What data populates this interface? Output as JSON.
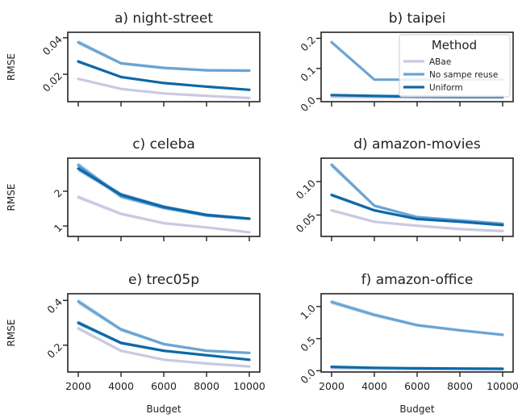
{
  "figure": {
    "xlabel": "Budget",
    "ylabel": "RMSE",
    "x_ticks": [
      "2000",
      "4000",
      "6000",
      "8000",
      "10000"
    ]
  },
  "legend": {
    "title": "Method",
    "entries": [
      "ABae",
      "No sampe reuse",
      "Uniform"
    ],
    "colors": [
      "#c9c9e3",
      "#6aa4d3",
      "#0d68a8"
    ],
    "location": "upper right of panel b"
  },
  "chart_data": [
    {
      "type": "line",
      "title": "a) night-street",
      "x": [
        2000,
        4000,
        6000,
        8000,
        10000
      ],
      "ylim": [
        0.005,
        0.043
      ],
      "yticks": [
        0.02,
        0.04
      ],
      "ytick_labels": [
        "0.02",
        "0.04"
      ],
      "ylabel": "RMSE",
      "series": [
        {
          "name": "ABae",
          "values": [
            0.0175,
            0.012,
            0.0095,
            0.0082,
            0.007
          ]
        },
        {
          "name": "No sampe reuse",
          "values": [
            0.0375,
            0.026,
            0.0235,
            0.0222,
            0.022
          ]
        },
        {
          "name": "Uniform",
          "values": [
            0.027,
            0.0185,
            0.0152,
            0.0132,
            0.0115
          ]
        }
      ]
    },
    {
      "type": "line",
      "title": "b) taipei",
      "x": [
        2000,
        4000,
        6000,
        8000,
        10000
      ],
      "ylim": [
        -0.01,
        0.22
      ],
      "yticks": [
        0.0,
        0.1,
        0.2
      ],
      "ytick_labels": [
        "0.0",
        "0.1",
        "0.2"
      ],
      "ylabel": "",
      "series": [
        {
          "name": "ABae",
          "values": [
            0.006,
            0.005,
            0.004,
            0.004,
            0.004
          ]
        },
        {
          "name": "No sampe reuse",
          "values": [
            0.187,
            0.063,
            0.063,
            0.063,
            0.063
          ]
        },
        {
          "name": "Uniform",
          "values": [
            0.012,
            0.009,
            0.007,
            0.006,
            0.006
          ]
        }
      ]
    },
    {
      "type": "line",
      "title": "c) celeba",
      "x": [
        2000,
        4000,
        6000,
        8000,
        10000
      ],
      "ylim": [
        0.7,
        2.95
      ],
      "yticks": [
        1,
        2
      ],
      "ytick_labels": [
        "1",
        "2"
      ],
      "ylabel": "RMSE",
      "series": [
        {
          "name": "ABae",
          "values": [
            1.83,
            1.35,
            1.08,
            0.96,
            0.82
          ]
        },
        {
          "name": "No sampe reuse",
          "values": [
            2.75,
            1.85,
            1.52,
            1.3,
            1.21
          ]
        },
        {
          "name": "Uniform",
          "values": [
            2.65,
            1.9,
            1.55,
            1.32,
            1.21
          ]
        }
      ]
    },
    {
      "type": "line",
      "title": "d) amazon-movies",
      "x": [
        2000,
        4000,
        6000,
        8000,
        10000
      ],
      "ylim": [
        0.018,
        0.135
      ],
      "yticks": [
        0.05,
        0.1
      ],
      "ytick_labels": [
        "0.05",
        "0.10"
      ],
      "ylabel": "",
      "series": [
        {
          "name": "ABae",
          "values": [
            0.057,
            0.04,
            0.034,
            0.029,
            0.026
          ]
        },
        {
          "name": "No sampe reuse",
          "values": [
            0.125,
            0.064,
            0.047,
            0.042,
            0.037
          ]
        },
        {
          "name": "Uniform",
          "values": [
            0.08,
            0.057,
            0.044,
            0.04,
            0.035
          ]
        }
      ]
    },
    {
      "type": "line",
      "title": "e) trec05p",
      "x": [
        2000,
        4000,
        6000,
        8000,
        10000
      ],
      "ylim": [
        0.08,
        0.43
      ],
      "yticks": [
        0.2,
        0.4
      ],
      "ytick_labels": [
        "0.2",
        "0.4"
      ],
      "ylabel": "RMSE",
      "series": [
        {
          "name": "ABae",
          "values": [
            0.275,
            0.175,
            0.135,
            0.118,
            0.105
          ]
        },
        {
          "name": "No sampe reuse",
          "values": [
            0.395,
            0.27,
            0.205,
            0.175,
            0.165
          ]
        },
        {
          "name": "Uniform",
          "values": [
            0.3,
            0.21,
            0.175,
            0.155,
            0.135
          ]
        }
      ]
    },
    {
      "type": "line",
      "title": "f) amazon-office",
      "x": [
        2000,
        4000,
        6000,
        8000,
        10000
      ],
      "ylim": [
        -0.02,
        1.2
      ],
      "yticks": [
        0.0,
        0.5,
        1.0
      ],
      "ytick_labels": [
        "0.0",
        "0.5",
        "1.0"
      ],
      "ylabel": "",
      "series": [
        {
          "name": "ABae",
          "values": [
            0.04,
            0.03,
            0.025,
            0.022,
            0.02
          ]
        },
        {
          "name": "No sampe reuse",
          "values": [
            1.07,
            0.87,
            0.71,
            0.63,
            0.56
          ]
        },
        {
          "name": "Uniform",
          "values": [
            0.06,
            0.045,
            0.038,
            0.034,
            0.03
          ]
        }
      ]
    }
  ]
}
